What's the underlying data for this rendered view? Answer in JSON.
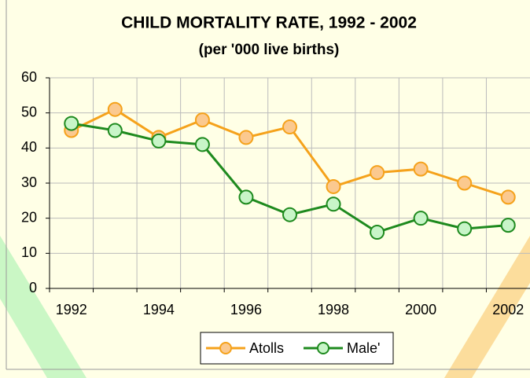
{
  "chart_data": {
    "type": "line",
    "title": "CHILD MORTALITY RATE, 1992 - 2002",
    "subtitle": "(per '000 live births)",
    "categories": [
      "1992",
      null,
      "1994",
      null,
      "1996",
      null,
      "1998",
      null,
      "2000",
      null,
      "2002"
    ],
    "series": [
      {
        "name": "Atolls",
        "color": "#f5a21b",
        "marker_fill": "#fbc98f",
        "values": [
          45,
          51,
          43,
          48,
          43,
          46,
          29,
          33,
          34,
          30,
          26
        ]
      },
      {
        "name": "Male'",
        "color": "#1e8a1e",
        "marker_fill": "#c8f5c8",
        "values": [
          47,
          45,
          42,
          41,
          26,
          21,
          24,
          16,
          20,
          17,
          18
        ]
      }
    ],
    "ylim": [
      0,
      60
    ],
    "yticks": [
      0,
      10,
      20,
      30,
      40,
      50,
      60
    ],
    "grid": true,
    "legend": "bottom"
  }
}
